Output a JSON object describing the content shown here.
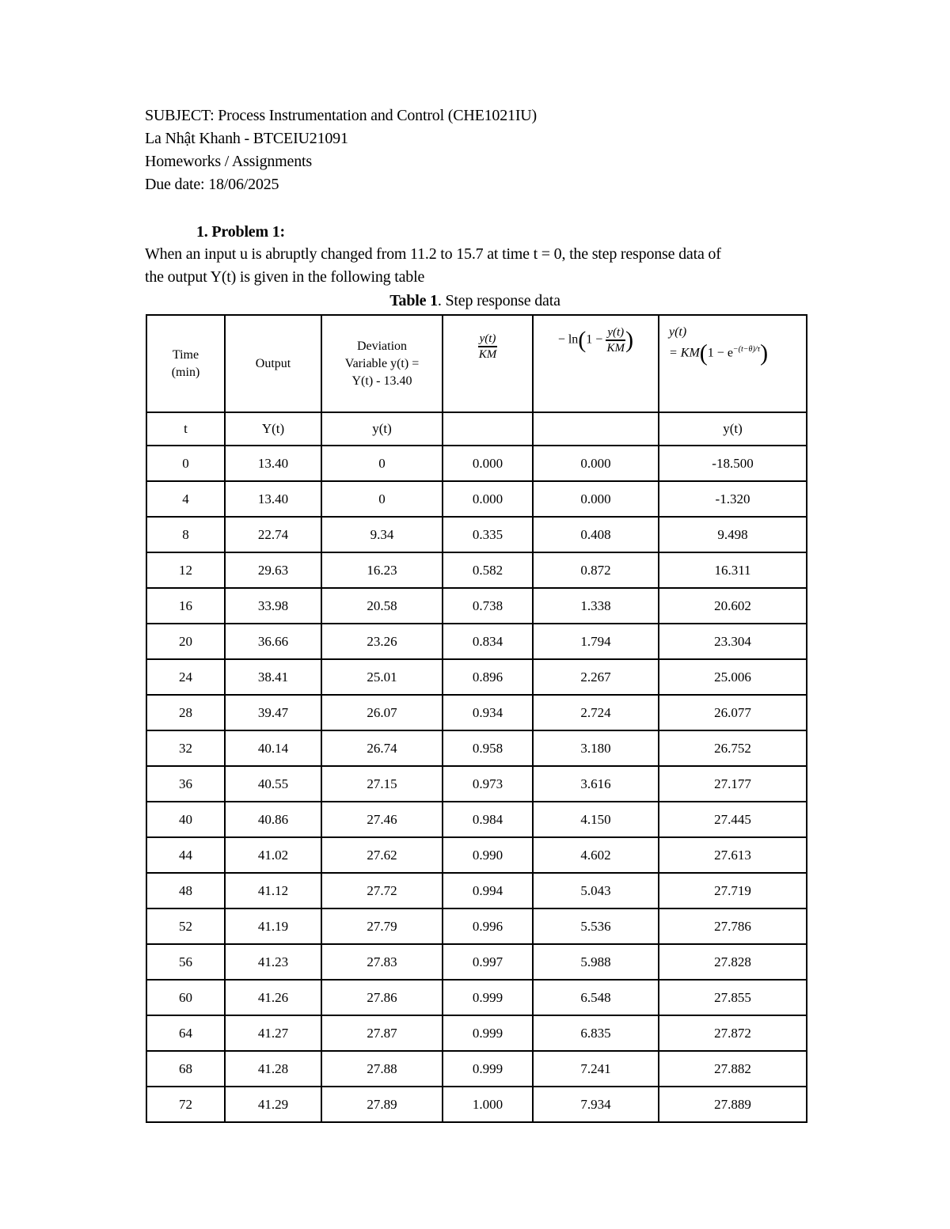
{
  "header": {
    "subject": "SUBJECT: Process Instrumentation and Control (CHE1021IU)",
    "student": "La Nhật Khanh - BTCEIU21091",
    "category": "Homeworks / Assignments",
    "due_date": "Due date: 18/06/2025"
  },
  "problem": {
    "heading": "1. Problem 1:",
    "text_line1": "When an input u is abruptly changed from 11.2 to 15.7 at time t = 0, the step response data of",
    "text_line2": "the output Y(t) is given in the following table"
  },
  "table": {
    "caption_bold": "Table 1",
    "caption_rest": ". Step response data",
    "headers": {
      "time_1": "Time",
      "time_2": "(min)",
      "output": "Output",
      "dev_1": "Deviation",
      "dev_2": "Variable y(t) =",
      "dev_3": "Y(t) - 13.40",
      "ratio_num": "y(t)",
      "ratio_den": "KM",
      "ln_prefix": "− ln",
      "ln_one": "1 −",
      "ln_num": "y(t)",
      "ln_den": "KM",
      "model_top": "y(t)",
      "model_eq": "= KM",
      "model_one": "1 − e",
      "model_exp": "−(t−θ)/τ"
    },
    "subheaders": [
      "t",
      "Y(t)",
      "y(t)",
      "",
      "",
      "y(t)"
    ],
    "rows": [
      [
        "0",
        "13.40",
        "0",
        "0.000",
        "0.000",
        "-18.500"
      ],
      [
        "4",
        "13.40",
        "0",
        "0.000",
        "0.000",
        "-1.320"
      ],
      [
        "8",
        "22.74",
        "9.34",
        "0.335",
        "0.408",
        "9.498"
      ],
      [
        "12",
        "29.63",
        "16.23",
        "0.582",
        "0.872",
        "16.311"
      ],
      [
        "16",
        "33.98",
        "20.58",
        "0.738",
        "1.338",
        "20.602"
      ],
      [
        "20",
        "36.66",
        "23.26",
        "0.834",
        "1.794",
        "23.304"
      ],
      [
        "24",
        "38.41",
        "25.01",
        "0.896",
        "2.267",
        "25.006"
      ],
      [
        "28",
        "39.47",
        "26.07",
        "0.934",
        "2.724",
        "26.077"
      ],
      [
        "32",
        "40.14",
        "26.74",
        "0.958",
        "3.180",
        "26.752"
      ],
      [
        "36",
        "40.55",
        "27.15",
        "0.973",
        "3.616",
        "27.177"
      ],
      [
        "40",
        "40.86",
        "27.46",
        "0.984",
        "4.150",
        "27.445"
      ],
      [
        "44",
        "41.02",
        "27.62",
        "0.990",
        "4.602",
        "27.613"
      ],
      [
        "48",
        "41.12",
        "27.72",
        "0.994",
        "5.043",
        "27.719"
      ],
      [
        "52",
        "41.19",
        "27.79",
        "0.996",
        "5.536",
        "27.786"
      ],
      [
        "56",
        "41.23",
        "27.83",
        "0.997",
        "5.988",
        "27.828"
      ],
      [
        "60",
        "41.26",
        "27.86",
        "0.999",
        "6.548",
        "27.855"
      ],
      [
        "64",
        "41.27",
        "27.87",
        "0.999",
        "6.835",
        "27.872"
      ],
      [
        "68",
        "41.28",
        "27.88",
        "0.999",
        "7.241",
        "27.882"
      ],
      [
        "72",
        "41.29",
        "27.89",
        "1.000",
        "7.934",
        "27.889"
      ]
    ]
  }
}
